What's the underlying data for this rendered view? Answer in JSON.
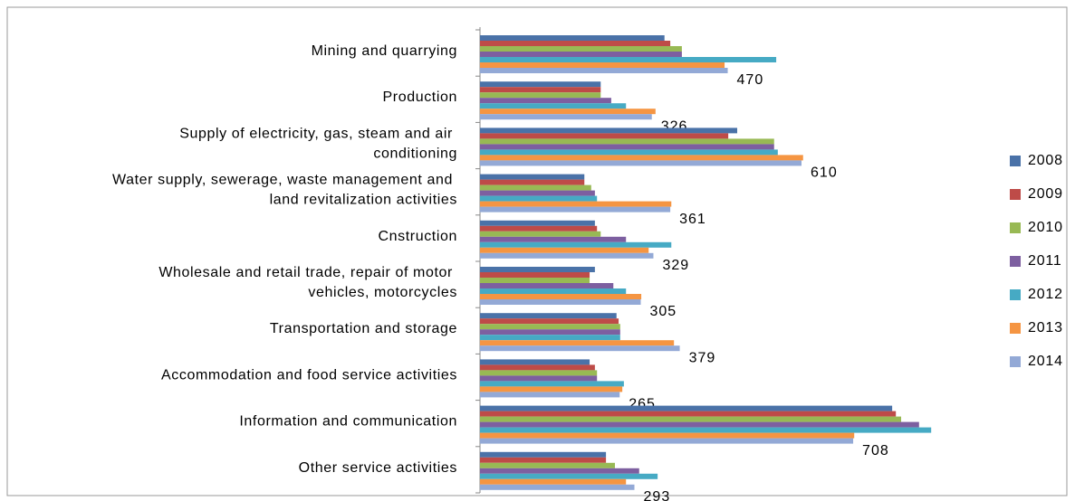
{
  "chart_data": {
    "type": "bar",
    "orientation": "horizontal",
    "categories": [
      "Mining and quarrying",
      "Production",
      "Supply of electricity, gas, steam and air conditioning",
      "Water supply, sewerage, waste management and land revitalization activities",
      "Cnstruction",
      "Wholesale and retail trade, repair of motor vehicles, motorcycles",
      "Transportation and storage",
      "Accommodation and food service activities",
      "Information and communication",
      "Other service activities"
    ],
    "series": [
      {
        "name": "2008",
        "color": "#4a72a8",
        "values": [
          350,
          229,
          488,
          198,
          218,
          218,
          259,
          208,
          782,
          239
        ]
      },
      {
        "name": "2009",
        "color": "#be4b48",
        "values": [
          361,
          229,
          471,
          198,
          222,
          208,
          263,
          218,
          789,
          239
        ]
      },
      {
        "name": "2010",
        "color": "#98b954",
        "values": [
          383,
          229,
          558,
          211,
          229,
          208,
          266,
          222,
          799,
          256
        ]
      },
      {
        "name": "2011",
        "color": "#7d5fa0",
        "values": [
          383,
          249,
          558,
          218,
          277,
          253,
          266,
          222,
          833,
          302
        ]
      },
      {
        "name": "2012",
        "color": "#46aac4",
        "values": [
          562,
          277,
          565,
          222,
          363,
          277,
          266,
          273,
          856,
          337
        ]
      },
      {
        "name": "2013",
        "color": "#f59542",
        "values": [
          464,
          333,
          613,
          363,
          320,
          306,
          368,
          270,
          710,
          277
        ]
      },
      {
        "name": "2014",
        "color": "#93a9d6",
        "values": [
          470,
          326,
          610,
          361,
          329,
          305,
          379,
          265,
          708,
          293
        ],
        "show_labels": true
      }
    ],
    "xlim": [
      0,
      900
    ],
    "legend": "right"
  }
}
